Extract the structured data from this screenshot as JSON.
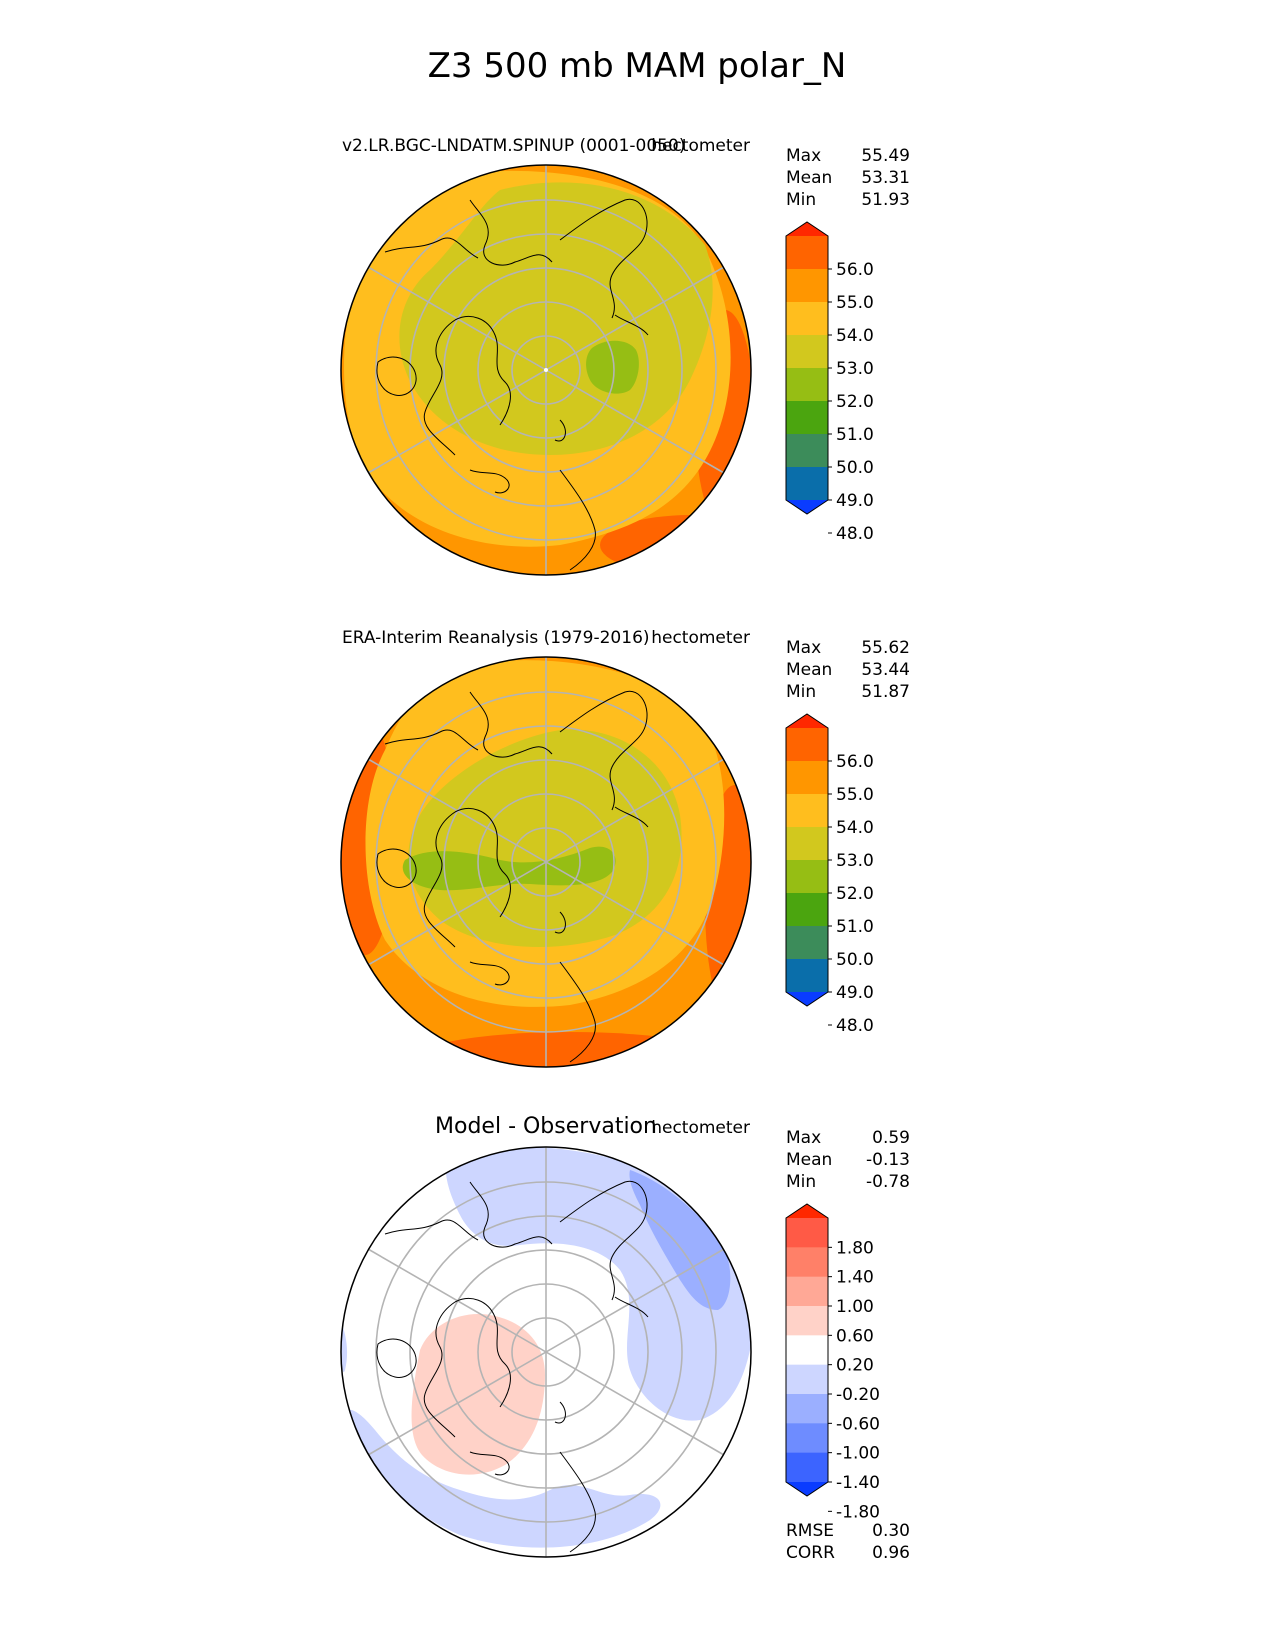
{
  "title": "Z3 500 mb MAM polar_N",
  "panels": [
    {
      "name": "test",
      "label": "v2.LR.BGC-LNDATM.SPINUP (0001-0050)",
      "units": "hectometer",
      "stats": [
        {
          "label": "Max",
          "value": "55.49"
        },
        {
          "label": "Mean",
          "value": "53.31"
        },
        {
          "label": "Min",
          "value": "51.93"
        }
      ],
      "colorbar": {
        "ticks": [
          "56.0",
          "55.0",
          "54.0",
          "53.0",
          "52.0",
          "51.0",
          "50.0",
          "49.0",
          "48.0"
        ],
        "colors": [
          "#ff2800",
          "#ff6400",
          "#ff9600",
          "#ffbe1e",
          "#d2c81e",
          "#96be14",
          "#4ba50f",
          "#3c8c5a",
          "#0a6eaa",
          "#0a3cff"
        ]
      }
    },
    {
      "name": "reference",
      "label": "ERA-Interim Reanalysis (1979-2016)",
      "units": "hectometer",
      "stats": [
        {
          "label": "Max",
          "value": "55.62"
        },
        {
          "label": "Mean",
          "value": "53.44"
        },
        {
          "label": "Min",
          "value": "51.87"
        }
      ],
      "colorbar": {
        "ticks": [
          "56.0",
          "55.0",
          "54.0",
          "53.0",
          "52.0",
          "51.0",
          "50.0",
          "49.0",
          "48.0"
        ],
        "colors": [
          "#ff2800",
          "#ff6400",
          "#ff9600",
          "#ffbe1e",
          "#d2c81e",
          "#96be14",
          "#4ba50f",
          "#3c8c5a",
          "#0a6eaa",
          "#0a3cff"
        ]
      }
    },
    {
      "name": "difference",
      "label": "Model - Observation",
      "units": "hectometer",
      "stats": [
        {
          "label": "Max",
          "value": "0.59"
        },
        {
          "label": "Mean",
          "value": "-0.13"
        },
        {
          "label": "Min",
          "value": "-0.78"
        }
      ],
      "colorbar": {
        "ticks": [
          "1.80",
          "1.40",
          "1.00",
          "0.60",
          "0.20",
          "-0.20",
          "-0.60",
          "-1.00",
          "-1.40",
          "-1.80"
        ],
        "colors": [
          "#ff2800",
          "#ff5a46",
          "#ff8068",
          "#ffa896",
          "#ffd2c8",
          "#ffffff",
          "#cdd6ff",
          "#9bafff",
          "#6e8cff",
          "#3c64ff",
          "#0a3cff"
        ]
      },
      "metrics": [
        {
          "label": "RMSE",
          "value": "0.30"
        },
        {
          "label": "CORR",
          "value": "0.96"
        }
      ]
    }
  ]
}
